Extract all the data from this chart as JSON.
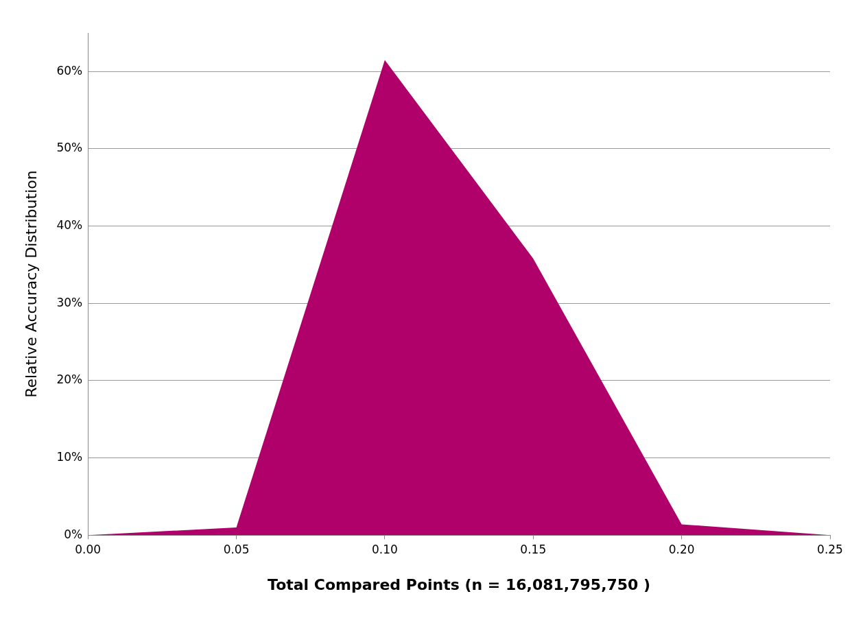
{
  "chart_data": {
    "type": "area",
    "xlabel": "Total Compared Points (n = 16,081,795,750 )",
    "ylabel": "Relative Accuracy Distribution",
    "x": [
      0,
      0.05,
      0.1,
      0.15,
      0.2,
      0.25
    ],
    "series": [
      {
        "color": "#b0006a",
        "values": [
          0,
          1,
          61.5,
          35.8,
          1.4,
          0
        ]
      }
    ],
    "xlim": [
      0,
      0.25
    ],
    "xticks": [
      {
        "value": 0,
        "label": "0.00"
      },
      {
        "value": 0.05,
        "label": "0.05"
      },
      {
        "value": 0.1,
        "label": "0.10"
      },
      {
        "value": 0.15,
        "label": "0.15"
      },
      {
        "value": 0.2,
        "label": "0.20"
      },
      {
        "value": 0.25,
        "label": "0.25"
      }
    ],
    "ylim": [
      0,
      65
    ],
    "yticks": [
      {
        "value": 0,
        "label": "0%"
      },
      {
        "value": 10,
        "label": "10%"
      },
      {
        "value": 20,
        "label": "20%"
      },
      {
        "value": 30,
        "label": "30%"
      },
      {
        "value": 40,
        "label": "40%"
      },
      {
        "value": 50,
        "label": "50%"
      },
      {
        "value": 60,
        "label": "60%"
      }
    ],
    "grid": "y",
    "legend": false,
    "marker": "none"
  }
}
